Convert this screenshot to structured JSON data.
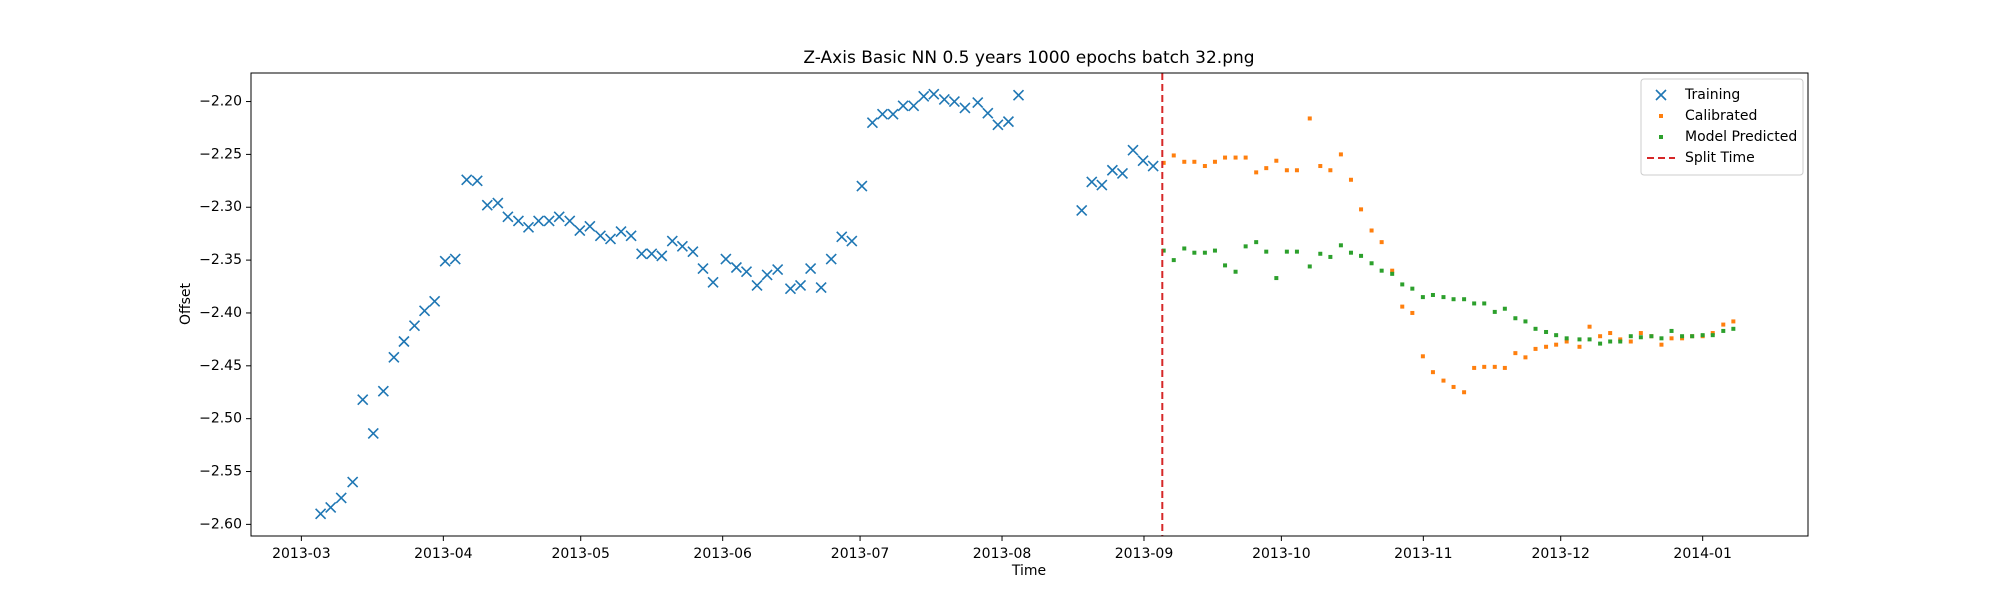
{
  "chart_data": {
    "type": "scatter",
    "title": "Z-Axis Basic NN 0.5 years 1000 epochs batch 32.png",
    "x_label": "Time",
    "y_label": "Offset",
    "xlim": [
      -11,
      329
    ],
    "ylim": [
      -2.611,
      -2.173
    ],
    "xticks": [
      {
        "value": 0,
        "label": "2013-03"
      },
      {
        "value": 31,
        "label": "2013-04"
      },
      {
        "value": 61,
        "label": "2013-05"
      },
      {
        "value": 92,
        "label": "2013-06"
      },
      {
        "value": 122,
        "label": "2013-07"
      },
      {
        "value": 153,
        "label": "2013-08"
      },
      {
        "value": 184,
        "label": "2013-09"
      },
      {
        "value": 214,
        "label": "2013-10"
      },
      {
        "value": 245,
        "label": "2013-11"
      },
      {
        "value": 275,
        "label": "2013-12"
      },
      {
        "value": 306,
        "label": "2014-01"
      }
    ],
    "yticks": [
      {
        "value": -2.6,
        "label": "−2.60"
      },
      {
        "value": -2.55,
        "label": "−2.55"
      },
      {
        "value": -2.5,
        "label": "−2.50"
      },
      {
        "value": -2.45,
        "label": "−2.45"
      },
      {
        "value": -2.4,
        "label": "−2.40"
      },
      {
        "value": -2.35,
        "label": "−2.35"
      },
      {
        "value": -2.3,
        "label": "−2.30"
      },
      {
        "value": -2.25,
        "label": "−2.25"
      },
      {
        "value": -2.2,
        "label": "−2.20"
      }
    ],
    "legend": "upper right",
    "series": [
      {
        "name": "Training",
        "color": "#1f77b4",
        "marker": "x",
        "x": [
          4.2,
          6.4,
          8.7,
          11.2,
          13.4,
          15.7,
          17.9,
          20.2,
          22.4,
          24.7,
          26.9,
          29.1,
          31.4,
          33.6,
          36.1,
          38.4,
          40.6,
          42.9,
          45.1,
          47.4,
          49.6,
          51.8,
          54.1,
          56.3,
          58.6,
          60.8,
          63.0,
          65.3,
          67.5,
          69.8,
          72.0,
          74.3,
          76.5,
          78.7,
          81.0,
          83.2,
          85.5,
          87.7,
          89.9,
          92.7,
          95.0,
          97.2,
          99.5,
          101.7,
          104.0,
          106.8,
          109.0,
          111.2,
          113.5,
          115.7,
          118.0,
          120.2,
          122.4,
          124.7,
          126.9,
          129.2,
          131.4,
          133.7,
          135.9,
          138.1,
          140.4,
          142.6,
          144.9,
          147.7,
          149.9,
          152.1,
          154.4,
          156.6,
          170.4,
          172.6,
          174.8,
          177.1,
          179.3,
          181.6,
          183.8,
          186.0
        ],
        "values": [
          -2.59,
          -2.584,
          -2.575,
          -2.56,
          -2.482,
          -2.514,
          -2.474,
          -2.442,
          -2.427,
          -2.412,
          -2.398,
          -2.389,
          -2.351,
          -2.349,
          -2.274,
          -2.275,
          -2.298,
          -2.296,
          -2.309,
          -2.313,
          -2.319,
          -2.313,
          -2.313,
          -2.309,
          -2.313,
          -2.322,
          -2.318,
          -2.327,
          -2.33,
          -2.323,
          -2.327,
          -2.344,
          -2.344,
          -2.346,
          -2.332,
          -2.337,
          -2.342,
          -2.358,
          -2.371,
          -2.349,
          -2.357,
          -2.361,
          -2.374,
          -2.364,
          -2.359,
          -2.377,
          -2.374,
          -2.358,
          -2.376,
          -2.349,
          -2.328,
          -2.332,
          -2.28,
          -2.22,
          -2.212,
          -2.212,
          -2.204,
          -2.204,
          -2.195,
          -2.193,
          -2.198,
          -2.2,
          -2.206,
          -2.201,
          -2.211,
          -2.222,
          -2.219,
          -2.194,
          -2.303,
          -2.276,
          -2.279,
          -2.265,
          -2.268,
          -2.246,
          -2.256,
          -2.261
        ]
      },
      {
        "name": "Calibrated",
        "color": "#ff7f0e",
        "marker": "dot",
        "x": [
          188.3,
          190.5,
          192.8,
          195.0,
          197.3,
          199.5,
          201.7,
          204.0,
          206.2,
          208.5,
          210.7,
          212.9,
          215.2,
          217.4,
          220.2,
          222.5,
          224.7,
          227.0,
          229.2,
          231.4,
          233.7,
          235.9,
          238.2,
          240.4,
          242.6,
          244.9,
          247.1,
          249.4,
          251.6,
          253.9,
          256.1,
          258.3,
          260.6,
          262.8,
          265.1,
          267.3,
          269.5,
          271.8,
          274.0,
          276.3,
          279.1,
          281.3,
          283.6,
          285.8,
          288.0,
          290.3,
          292.5,
          294.8,
          297.0,
          299.2,
          301.5,
          303.7,
          306.0,
          308.2,
          310.5,
          312.7
        ],
        "values": [
          -2.258,
          -2.251,
          -2.257,
          -2.257,
          -2.261,
          -2.257,
          -2.253,
          -2.253,
          -2.253,
          -2.267,
          -2.263,
          -2.256,
          -2.265,
          -2.265,
          -2.216,
          -2.261,
          -2.265,
          -2.25,
          -2.274,
          -2.302,
          -2.322,
          -2.333,
          -2.36,
          -2.394,
          -2.4,
          -2.441,
          -2.456,
          -2.464,
          -2.47,
          -2.475,
          -2.452,
          -2.451,
          -2.451,
          -2.452,
          -2.438,
          -2.442,
          -2.434,
          -2.432,
          -2.43,
          -2.427,
          -2.432,
          -2.413,
          -2.422,
          -2.419,
          -2.425,
          -2.427,
          -2.419,
          -2.422,
          -2.43,
          -2.424,
          -2.424,
          -2.422,
          -2.422,
          -2.419,
          -2.411,
          -2.408
        ]
      },
      {
        "name": "Model Predicted",
        "color": "#2ca02c",
        "marker": "dot",
        "x": [
          188.3,
          190.5,
          192.8,
          195.0,
          197.3,
          199.5,
          201.7,
          204.0,
          206.2,
          208.5,
          210.7,
          212.9,
          215.2,
          217.4,
          220.2,
          222.5,
          224.7,
          227.0,
          229.2,
          231.4,
          233.7,
          235.9,
          238.2,
          240.4,
          242.6,
          244.9,
          247.1,
          249.4,
          251.6,
          253.9,
          256.1,
          258.3,
          260.6,
          262.8,
          265.1,
          267.3,
          269.5,
          271.8,
          274.0,
          276.3,
          279.1,
          281.3,
          283.6,
          285.8,
          288.0,
          290.3,
          292.5,
          294.8,
          297.0,
          299.2,
          301.5,
          303.7,
          306.0,
          308.2,
          310.5,
          312.7
        ],
        "values": [
          -2.341,
          -2.35,
          -2.339,
          -2.343,
          -2.343,
          -2.341,
          -2.355,
          -2.361,
          -2.337,
          -2.333,
          -2.342,
          -2.367,
          -2.342,
          -2.342,
          -2.356,
          -2.344,
          -2.347,
          -2.336,
          -2.343,
          -2.346,
          -2.353,
          -2.36,
          -2.363,
          -2.373,
          -2.377,
          -2.385,
          -2.383,
          -2.385,
          -2.387,
          -2.387,
          -2.391,
          -2.391,
          -2.399,
          -2.396,
          -2.405,
          -2.408,
          -2.415,
          -2.418,
          -2.421,
          -2.424,
          -2.425,
          -2.425,
          -2.429,
          -2.427,
          -2.427,
          -2.422,
          -2.423,
          -2.422,
          -2.424,
          -2.417,
          -2.422,
          -2.422,
          -2.421,
          -2.421,
          -2.417,
          -2.415
        ]
      }
    ],
    "split_line": {
      "name": "Split Time",
      "color": "#d62728",
      "x": 188
    }
  }
}
